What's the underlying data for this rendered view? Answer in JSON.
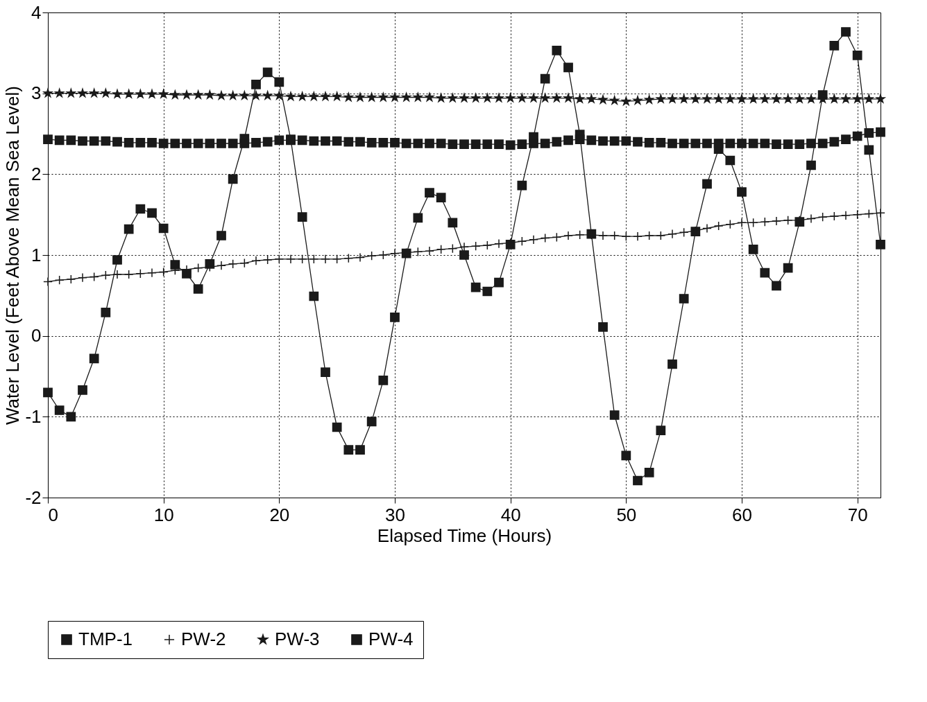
{
  "chart_data": {
    "type": "line",
    "xlabel": "Elapsed Time (Hours)",
    "ylabel": "Water Level (Feet Above Mean Sea Level)",
    "x": [
      0,
      1,
      2,
      3,
      4,
      5,
      6,
      7,
      8,
      9,
      10,
      11,
      12,
      13,
      14,
      15,
      16,
      17,
      18,
      19,
      20,
      21,
      22,
      23,
      24,
      25,
      26,
      27,
      28,
      29,
      30,
      31,
      32,
      33,
      34,
      35,
      36,
      37,
      38,
      39,
      40,
      41,
      42,
      43,
      44,
      45,
      46,
      47,
      48,
      49,
      50,
      51,
      52,
      53,
      54,
      55,
      56,
      57,
      58,
      59,
      60,
      61,
      62,
      63,
      64,
      65,
      66,
      67,
      68,
      69,
      70,
      71,
      72
    ],
    "series": [
      {
        "name": "TMP-1",
        "color": "#1a1a1a",
        "marker": "square",
        "values": [
          -0.7,
          -0.92,
          -1.0,
          -0.67,
          -0.28,
          0.29,
          0.94,
          1.32,
          1.57,
          1.52,
          1.33,
          0.88,
          0.77,
          0.58,
          0.89,
          1.24,
          1.94,
          2.44,
          3.11,
          3.26,
          3.14,
          2.43,
          1.47,
          0.49,
          -0.45,
          -1.13,
          -1.41,
          -1.41,
          -1.06,
          -0.55,
          0.23,
          1.02,
          1.46,
          1.77,
          1.71,
          1.4,
          1.0,
          0.6,
          0.55,
          0.66,
          1.13,
          1.86,
          2.46,
          3.18,
          3.53,
          3.32,
          2.49,
          1.26,
          0.11,
          -0.98,
          -1.48,
          -1.79,
          -1.69,
          -1.17,
          -0.35,
          0.46,
          1.29,
          1.88,
          2.31,
          2.17,
          1.78,
          1.07,
          0.78,
          0.62,
          0.84,
          1.41,
          2.11,
          2.98,
          3.59,
          3.76,
          3.47,
          2.3,
          1.13
        ]
      },
      {
        "name": "PW-2",
        "color": "#1a1a1a",
        "marker": "cross",
        "values": [
          0.67,
          0.69,
          0.7,
          0.72,
          0.73,
          0.75,
          0.76,
          0.76,
          0.77,
          0.78,
          0.79,
          0.81,
          0.82,
          0.84,
          0.85,
          0.87,
          0.89,
          0.9,
          0.93,
          0.94,
          0.95,
          0.95,
          0.95,
          0.95,
          0.95,
          0.95,
          0.96,
          0.97,
          0.99,
          1.0,
          1.02,
          1.03,
          1.04,
          1.05,
          1.07,
          1.08,
          1.1,
          1.11,
          1.12,
          1.14,
          1.15,
          1.17,
          1.19,
          1.21,
          1.22,
          1.24,
          1.25,
          1.25,
          1.24,
          1.24,
          1.23,
          1.23,
          1.24,
          1.24,
          1.26,
          1.28,
          1.3,
          1.33,
          1.36,
          1.38,
          1.4,
          1.4,
          1.41,
          1.42,
          1.43,
          1.43,
          1.45,
          1.47,
          1.48,
          1.49,
          1.5,
          1.51,
          1.52
        ]
      },
      {
        "name": "PW-3",
        "color": "#1a1a1a",
        "marker": "star",
        "values": [
          3.0,
          3.0,
          3.0,
          3.0,
          3.0,
          3.0,
          2.99,
          2.99,
          2.99,
          2.99,
          2.99,
          2.98,
          2.98,
          2.98,
          2.98,
          2.97,
          2.97,
          2.97,
          2.97,
          2.97,
          2.97,
          2.96,
          2.96,
          2.96,
          2.96,
          2.96,
          2.95,
          2.95,
          2.95,
          2.95,
          2.95,
          2.95,
          2.95,
          2.95,
          2.94,
          2.94,
          2.94,
          2.94,
          2.94,
          2.94,
          2.94,
          2.94,
          2.94,
          2.94,
          2.94,
          2.94,
          2.93,
          2.93,
          2.92,
          2.91,
          2.9,
          2.91,
          2.92,
          2.93,
          2.93,
          2.93,
          2.93,
          2.93,
          2.93,
          2.93,
          2.93,
          2.93,
          2.93,
          2.93,
          2.93,
          2.93,
          2.93,
          2.93,
          2.93,
          2.93,
          2.93,
          2.93,
          2.93
        ]
      },
      {
        "name": "PW-4",
        "color": "#1a1a1a",
        "marker": "square",
        "values": [
          2.43,
          2.42,
          2.42,
          2.41,
          2.41,
          2.41,
          2.4,
          2.39,
          2.39,
          2.39,
          2.38,
          2.38,
          2.38,
          2.38,
          2.38,
          2.38,
          2.38,
          2.38,
          2.39,
          2.4,
          2.42,
          2.42,
          2.42,
          2.41,
          2.41,
          2.41,
          2.4,
          2.4,
          2.39,
          2.39,
          2.39,
          2.38,
          2.38,
          2.38,
          2.38,
          2.37,
          2.37,
          2.37,
          2.37,
          2.37,
          2.36,
          2.37,
          2.38,
          2.38,
          2.4,
          2.42,
          2.43,
          2.42,
          2.41,
          2.41,
          2.41,
          2.4,
          2.39,
          2.39,
          2.38,
          2.38,
          2.38,
          2.38,
          2.38,
          2.38,
          2.38,
          2.38,
          2.38,
          2.37,
          2.37,
          2.37,
          2.38,
          2.38,
          2.4,
          2.43,
          2.47,
          2.51,
          2.52
        ]
      }
    ],
    "xlim": [
      0,
      72
    ],
    "xticks": [
      0,
      10,
      20,
      30,
      40,
      50,
      60,
      70
    ],
    "ylim": [
      -2,
      4
    ],
    "yticks": [
      -2,
      -1,
      0,
      1,
      2,
      3,
      4
    ],
    "grid": true,
    "legend": "bottom",
    "line_style": "solid"
  }
}
